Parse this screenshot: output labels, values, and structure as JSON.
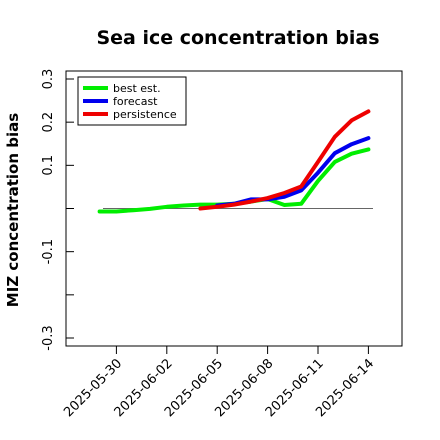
{
  "chart_data": {
    "type": "line",
    "title": "Sea ice concentration bias",
    "ylabel": "MIZ concentration bias",
    "xlabel": "",
    "ylim": [
      -0.3,
      0.3
    ],
    "xlim": [
      "2025-05-27",
      "2025-06-16"
    ],
    "yticks": [
      -0.3,
      -0.2,
      -0.1,
      0,
      0.1,
      0.2,
      0.3
    ],
    "ytick_labels": [
      "-0.3",
      "",
      "-0.1",
      "",
      "0.1",
      "0.2",
      "0.3"
    ],
    "xticks": [
      "2025-05-30",
      "2025-06-02",
      "2025-06-05",
      "2025-06-08",
      "2025-06-11",
      "2025-06-14"
    ],
    "xtick_labels": [
      "2025-05-30",
      "2025-06-02",
      "2025-06-05",
      "2025-06-08",
      "2025-06-11",
      "2025-06-14"
    ],
    "highlight_xtick": "2025-06-05",
    "highlight_color": "#228B22",
    "zero_line": true,
    "grid": false,
    "legend_position": "top-left",
    "series": [
      {
        "name": "best est.",
        "color": "#00ee00",
        "x": [
          "2025-05-29",
          "2025-05-30",
          "2025-05-31",
          "2025-06-01",
          "2025-06-02",
          "2025-06-03",
          "2025-06-04",
          "2025-06-05",
          "2025-06-06",
          "2025-06-07",
          "2025-06-08",
          "2025-06-09",
          "2025-06-10",
          "2025-06-11",
          "2025-06-12",
          "2025-06-13",
          "2025-06-14"
        ],
        "values": [
          -0.007,
          -0.007,
          -0.004,
          -0.001,
          0.004,
          0.007,
          0.009,
          0.009,
          0.011,
          0.016,
          0.022,
          0.008,
          0.011,
          0.064,
          0.108,
          0.127,
          0.137
        ]
      },
      {
        "name": "forecast",
        "color": "#0000ee",
        "x": [
          "2025-06-05",
          "2025-06-06",
          "2025-06-07",
          "2025-06-08",
          "2025-06-09",
          "2025-06-10",
          "2025-06-11",
          "2025-06-12",
          "2025-06-13",
          "2025-06-14"
        ],
        "values": [
          0.007,
          0.011,
          0.021,
          0.021,
          0.027,
          0.042,
          0.083,
          0.128,
          0.149,
          0.163
        ]
      },
      {
        "name": "persistence",
        "color": "#ee0000",
        "x": [
          "2025-06-04",
          "2025-06-05",
          "2025-06-06",
          "2025-06-07",
          "2025-06-08",
          "2025-06-09",
          "2025-06-10",
          "2025-06-11",
          "2025-06-12",
          "2025-06-13",
          "2025-06-14"
        ],
        "values": [
          0.0,
          0.004,
          0.009,
          0.016,
          0.024,
          0.036,
          0.051,
          0.108,
          0.166,
          0.204,
          0.225
        ]
      }
    ]
  }
}
